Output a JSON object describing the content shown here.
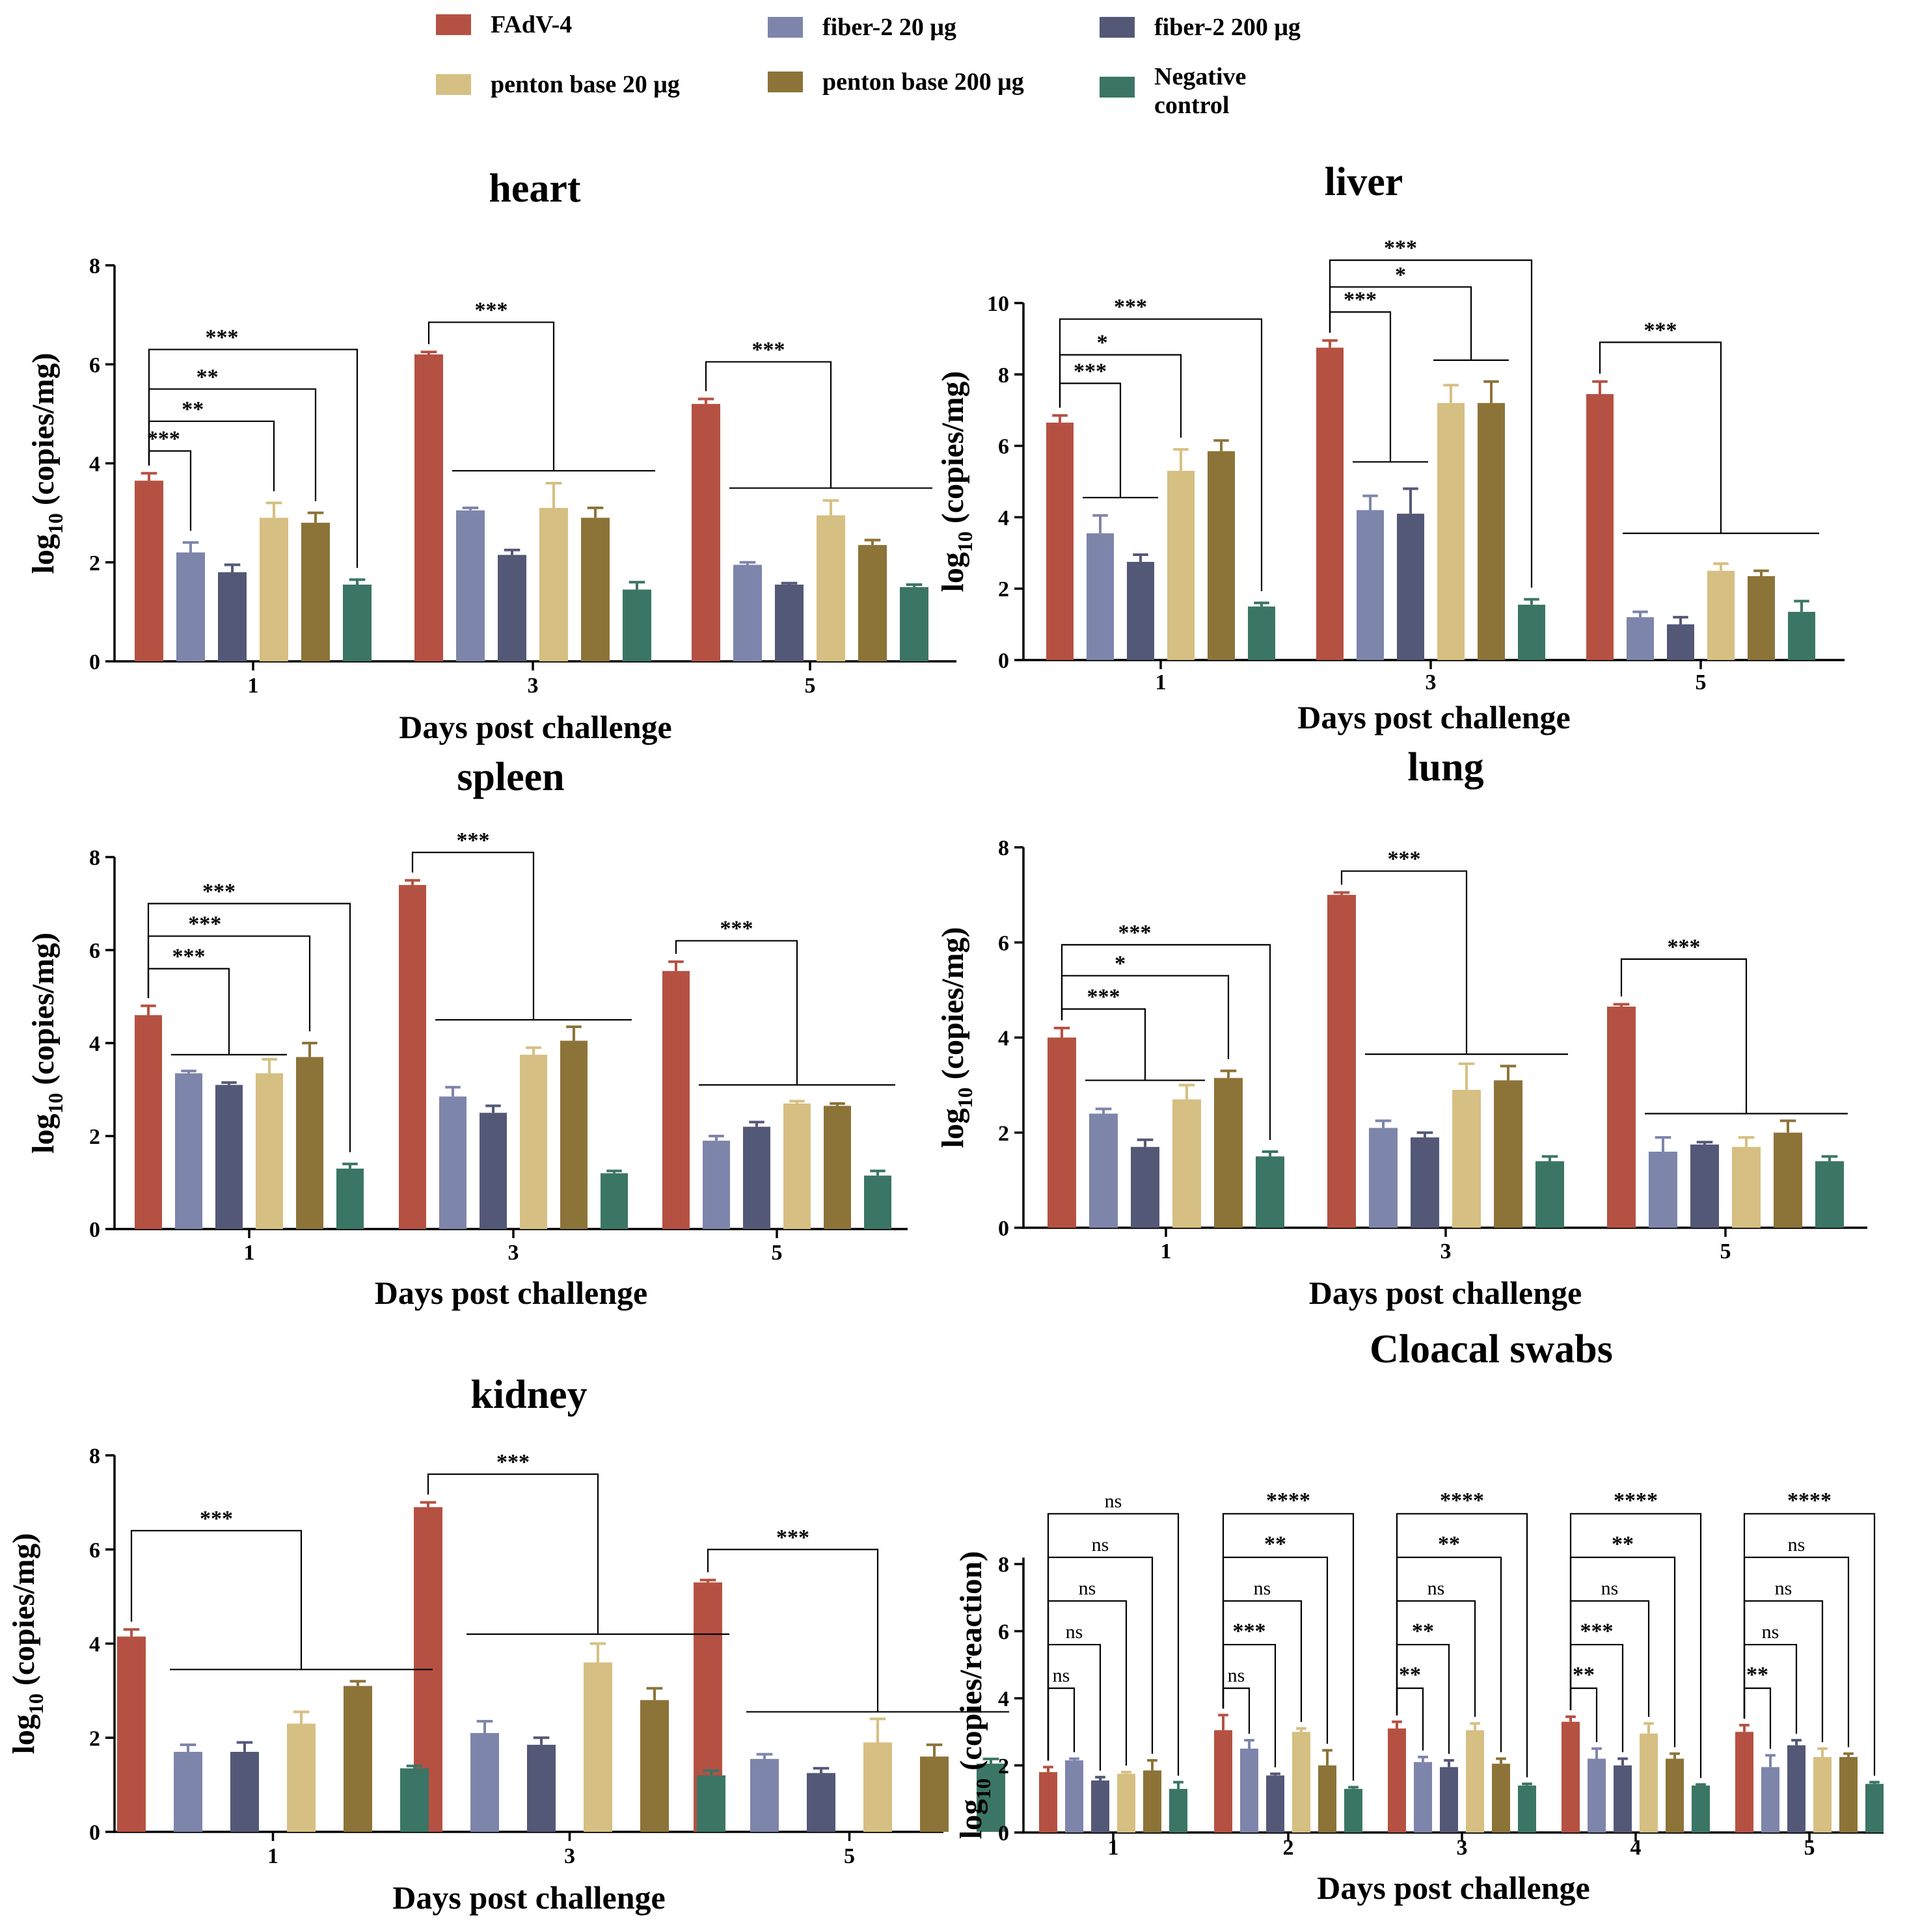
{
  "legend": {
    "entries": [
      {
        "name": "FAdV-4",
        "color": "#b55142"
      },
      {
        "name": "fiber-2 20 μg",
        "color": "#7e85ab"
      },
      {
        "name": "fiber-2 200 μg",
        "color": "#545877"
      },
      {
        "name": "penton base 20 μg",
        "color": "#d6bf82"
      },
      {
        "name": "penton base 200 μg",
        "color": "#8c7338"
      },
      {
        "name": "Negative\ncontrol",
        "color": "#3b7565"
      }
    ]
  },
  "chart_data": [
    {
      "type": "bar",
      "title": "heart",
      "xlabel": "Days post challenge",
      "ylabel": "log10 (copies/mg)",
      "ylim": [
        0,
        8
      ],
      "yticks": [
        0,
        2,
        4,
        6,
        8
      ],
      "categories": [
        "1",
        "3",
        "5"
      ],
      "series": [
        {
          "name": "FAdV-4",
          "values": [
            3.65,
            6.2,
            5.2
          ],
          "errors": [
            0.15,
            0.05,
            0.1
          ]
        },
        {
          "name": "fiber-2 20 μg",
          "values": [
            2.2,
            3.05,
            1.95
          ],
          "errors": [
            0.2,
            0.05,
            0.05
          ]
        },
        {
          "name": "fiber-2 200 μg",
          "values": [
            1.8,
            2.15,
            1.55
          ],
          "errors": [
            0.15,
            0.1,
            0.03
          ]
        },
        {
          "name": "penton base 20 μg",
          "values": [
            2.9,
            3.1,
            2.95
          ],
          "errors": [
            0.3,
            0.5,
            0.3
          ]
        },
        {
          "name": "penton base 200 μg",
          "values": [
            2.8,
            2.9,
            2.35
          ],
          "errors": [
            0.2,
            0.2,
            0.1
          ]
        },
        {
          "name": "Negative control",
          "values": [
            1.55,
            1.45,
            1.5
          ],
          "errors": [
            0.1,
            0.15,
            0.05
          ]
        }
      ],
      "significance": [
        {
          "group": "1",
          "from": 0,
          "to": 1,
          "label": "***"
        },
        {
          "group": "1",
          "from": 0,
          "to": 3,
          "label": "**"
        },
        {
          "group": "1",
          "from": 0,
          "to": 4,
          "label": "**"
        },
        {
          "group": "1",
          "from": 0,
          "to": 5,
          "label": "***"
        },
        {
          "group": "3",
          "from": 0,
          "to": "1-5",
          "label": "***"
        },
        {
          "group": "5",
          "from": 0,
          "to": "1-5",
          "label": "***"
        }
      ]
    },
    {
      "type": "bar",
      "title": "liver",
      "xlabel": "Days post challenge",
      "ylabel": "log10 (copies/mg)",
      "ylim": [
        0,
        10
      ],
      "yticks": [
        0,
        2,
        4,
        6,
        8,
        10
      ],
      "categories": [
        "1",
        "3",
        "5"
      ],
      "series": [
        {
          "name": "FAdV-4",
          "values": [
            6.65,
            8.75,
            7.45
          ],
          "errors": [
            0.2,
            0.2,
            0.35
          ]
        },
        {
          "name": "fiber-2 20 μg",
          "values": [
            3.55,
            4.2,
            1.2
          ],
          "errors": [
            0.5,
            0.4,
            0.15
          ]
        },
        {
          "name": "fiber-2 200 μg",
          "values": [
            2.75,
            4.1,
            1.0
          ],
          "errors": [
            0.2,
            0.7,
            0.2
          ]
        },
        {
          "name": "penton base 20 μg",
          "values": [
            5.3,
            7.2,
            2.5
          ],
          "errors": [
            0.6,
            0.5,
            0.2
          ]
        },
        {
          "name": "penton base 200 μg",
          "values": [
            5.85,
            7.2,
            2.35
          ],
          "errors": [
            0.3,
            0.6,
            0.15
          ]
        },
        {
          "name": "Negative control",
          "values": [
            1.5,
            1.55,
            1.35
          ],
          "errors": [
            0.1,
            0.15,
            0.3
          ]
        }
      ],
      "significance": [
        {
          "group": "1",
          "from": 0,
          "to": "1-2",
          "label": "***"
        },
        {
          "group": "1",
          "from": 0,
          "to": 3,
          "label": "*"
        },
        {
          "group": "1",
          "from": 0,
          "to": 5,
          "label": "***"
        },
        {
          "group": "3",
          "from": 0,
          "to": "1-2",
          "label": "***"
        },
        {
          "group": "3",
          "from": 0,
          "to": "3-4",
          "label": "*"
        },
        {
          "group": "3",
          "from": 0,
          "to": 5,
          "label": "***"
        },
        {
          "group": "5",
          "from": 0,
          "to": "1-5",
          "label": "***"
        }
      ]
    },
    {
      "type": "bar",
      "title": "spleen",
      "xlabel": "Days post challenge",
      "ylabel": "log10 (copies/mg)",
      "ylim": [
        0,
        8
      ],
      "yticks": [
        0,
        2,
        4,
        6,
        8
      ],
      "categories": [
        "1",
        "3",
        "5"
      ],
      "series": [
        {
          "name": "FAdV-4",
          "values": [
            4.6,
            7.4,
            5.55
          ],
          "errors": [
            0.2,
            0.1,
            0.2
          ]
        },
        {
          "name": "fiber-2 20 μg",
          "values": [
            3.35,
            2.85,
            1.9
          ],
          "errors": [
            0.05,
            0.2,
            0.1
          ]
        },
        {
          "name": "fiber-2 200 μg",
          "values": [
            3.1,
            2.5,
            2.2
          ],
          "errors": [
            0.05,
            0.15,
            0.1
          ]
        },
        {
          "name": "penton base 20 μg",
          "values": [
            3.35,
            3.75,
            2.7
          ],
          "errors": [
            0.3,
            0.15,
            0.05
          ]
        },
        {
          "name": "penton base 200 μg",
          "values": [
            3.7,
            4.05,
            2.65
          ],
          "errors": [
            0.3,
            0.3,
            0.05
          ]
        },
        {
          "name": "Negative control",
          "values": [
            1.3,
            1.2,
            1.15
          ],
          "errors": [
            0.1,
            0.05,
            0.1
          ]
        }
      ],
      "significance": [
        {
          "group": "1",
          "from": 0,
          "to": "1-3",
          "label": "***"
        },
        {
          "group": "1",
          "from": 0,
          "to": 4,
          "label": "***"
        },
        {
          "group": "1",
          "from": 0,
          "to": 5,
          "label": "***"
        },
        {
          "group": "3",
          "from": 0,
          "to": "1-5",
          "label": "***"
        },
        {
          "group": "5",
          "from": 0,
          "to": "1-5",
          "label": "***"
        }
      ]
    },
    {
      "type": "bar",
      "title": "lung",
      "xlabel": "Days post challenge",
      "ylabel": "log10 (copies/mg)",
      "ylim": [
        0,
        8
      ],
      "yticks": [
        0,
        2,
        4,
        6,
        8
      ],
      "categories": [
        "1",
        "3",
        "5"
      ],
      "series": [
        {
          "name": "FAdV-4",
          "values": [
            4.0,
            7.0,
            4.65
          ],
          "errors": [
            0.2,
            0.05,
            0.05
          ]
        },
        {
          "name": "fiber-2 20 μg",
          "values": [
            2.4,
            2.1,
            1.6
          ],
          "errors": [
            0.1,
            0.15,
            0.3
          ]
        },
        {
          "name": "fiber-2 200 μg",
          "values": [
            1.7,
            1.9,
            1.75
          ],
          "errors": [
            0.15,
            0.1,
            0.05
          ]
        },
        {
          "name": "penton base 20 μg",
          "values": [
            2.7,
            2.9,
            1.7
          ],
          "errors": [
            0.3,
            0.55,
            0.2
          ]
        },
        {
          "name": "penton base 200 μg",
          "values": [
            3.15,
            3.1,
            2.0
          ],
          "errors": [
            0.15,
            0.3,
            0.25
          ]
        },
        {
          "name": "Negative control",
          "values": [
            1.5,
            1.4,
            1.4
          ],
          "errors": [
            0.1,
            0.1,
            0.1
          ]
        }
      ],
      "significance": [
        {
          "group": "1",
          "from": 0,
          "to": "1-3",
          "label": "***"
        },
        {
          "group": "1",
          "from": 0,
          "to": 4,
          "label": "*"
        },
        {
          "group": "1",
          "from": 0,
          "to": 5,
          "label": "***"
        },
        {
          "group": "3",
          "from": 0,
          "to": "1-5",
          "label": "***"
        },
        {
          "group": "5",
          "from": 0,
          "to": "1-5",
          "label": "***"
        }
      ]
    },
    {
      "type": "bar",
      "title": "kidney",
      "xlabel": "Days post challenge",
      "ylabel": "log10 (copies/mg)",
      "ylim": [
        0,
        8
      ],
      "yticks": [
        0,
        2,
        4,
        6,
        8
      ],
      "categories": [
        "1",
        "3",
        "5"
      ],
      "series": [
        {
          "name": "FAdV-4",
          "values": [
            4.15,
            6.9,
            5.3
          ],
          "errors": [
            0.15,
            0.1,
            0.05
          ]
        },
        {
          "name": "fiber-2 20 μg",
          "values": [
            1.7,
            2.1,
            1.55
          ],
          "errors": [
            0.15,
            0.25,
            0.1
          ]
        },
        {
          "name": "fiber-2 200 μg",
          "values": [
            1.7,
            1.85,
            1.25
          ],
          "errors": [
            0.2,
            0.15,
            0.1
          ]
        },
        {
          "name": "penton base 20 μg",
          "values": [
            2.3,
            3.6,
            1.9
          ],
          "errors": [
            0.25,
            0.4,
            0.5
          ]
        },
        {
          "name": "penton base 200 μg",
          "values": [
            3.1,
            2.8,
            1.6
          ],
          "errors": [
            0.1,
            0.25,
            0.25
          ]
        },
        {
          "name": "Negative control",
          "values": [
            1.35,
            1.2,
            1.45
          ],
          "errors": [
            0.05,
            0.1,
            0.1
          ]
        }
      ],
      "significance": [
        {
          "group": "1",
          "from": 0,
          "to": "1-5",
          "label": "***"
        },
        {
          "group": "3",
          "from": 0,
          "to": "1-5",
          "label": "***"
        },
        {
          "group": "5",
          "from": 0,
          "to": "1-5",
          "label": "***"
        }
      ]
    },
    {
      "type": "bar",
      "title": "Cloacal swabs",
      "xlabel": "Days post challenge",
      "ylabel": "log10 (copies/reaction)",
      "ylim": [
        0,
        10
      ],
      "yticks": [
        0,
        2,
        4,
        6,
        8
      ],
      "categories": [
        "1",
        "2",
        "3",
        "4",
        "5"
      ],
      "series": [
        {
          "name": "FAdV-4",
          "values": [
            1.8,
            3.05,
            3.1,
            3.3,
            3.0
          ],
          "errors": [
            0.15,
            0.45,
            0.2,
            0.15,
            0.2
          ]
        },
        {
          "name": "fiber-2 20 μg",
          "values": [
            2.15,
            2.5,
            2.1,
            2.2,
            1.95
          ],
          "errors": [
            0.05,
            0.25,
            0.15,
            0.3,
            0.35
          ]
        },
        {
          "name": "fiber-2 200 μg",
          "values": [
            1.55,
            1.7,
            1.95,
            2.0,
            2.6
          ],
          "errors": [
            0.1,
            0.05,
            0.2,
            0.2,
            0.15
          ]
        },
        {
          "name": "penton base 20 μg",
          "values": [
            1.75,
            3.0,
            3.05,
            2.95,
            2.25
          ],
          "errors": [
            0.05,
            0.1,
            0.2,
            0.3,
            0.25
          ]
        },
        {
          "name": "penton base 200 μg",
          "values": [
            1.85,
            2.0,
            2.05,
            2.2,
            2.25
          ],
          "errors": [
            0.3,
            0.45,
            0.15,
            0.15,
            0.1
          ]
        },
        {
          "name": "Negative control",
          "values": [
            1.3,
            1.3,
            1.4,
            1.4,
            1.45
          ],
          "errors": [
            0.2,
            0.05,
            0.05,
            0.03,
            0.05
          ]
        }
      ],
      "significance": [
        {
          "group": "1",
          "labels": [
            "ns",
            "ns",
            "ns",
            "ns",
            "ns"
          ]
        },
        {
          "group": "2",
          "labels": [
            "ns",
            "***",
            "ns",
            "**",
            "****"
          ]
        },
        {
          "group": "3",
          "labels": [
            "**",
            "**",
            "ns",
            "**",
            "****"
          ]
        },
        {
          "group": "4",
          "labels": [
            "**",
            "***",
            "ns",
            "**",
            "****"
          ]
        },
        {
          "group": "5",
          "labels": [
            "**",
            "ns",
            "ns",
            "ns",
            "****"
          ]
        }
      ]
    }
  ]
}
